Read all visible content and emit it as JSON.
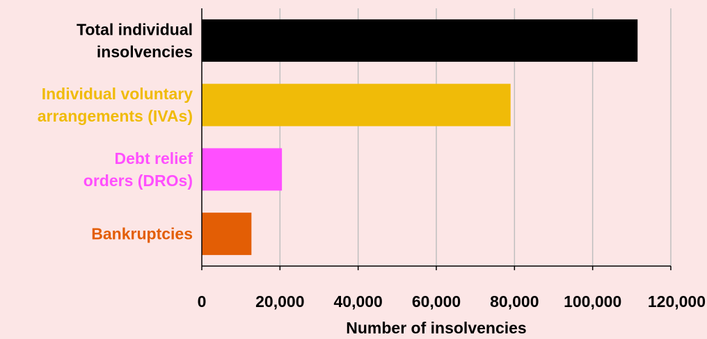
{
  "chart_data": {
    "type": "bar",
    "orientation": "horizontal",
    "categories": [
      [
        "Total individual",
        "insolvencies"
      ],
      [
        "Individual voluntary",
        "arrangements (IVAs)"
      ],
      [
        "Debt relief",
        "orders (DROs)"
      ],
      [
        "Bankruptcies"
      ]
    ],
    "values": [
      111500,
      79000,
      20500,
      12700
    ],
    "colors": [
      "#000000",
      "#f0bb08",
      "#ff4fff",
      "#e35e05"
    ],
    "label_colors": [
      "#000000",
      "#f0bb08",
      "#ff4fff",
      "#e35e05"
    ],
    "xlabel": "Number of insolvencies",
    "ylabel": "",
    "title": "",
    "xlim": [
      0,
      120000
    ],
    "xticks": [
      0,
      20000,
      40000,
      60000,
      80000,
      100000,
      120000
    ],
    "xtick_labels": [
      "0",
      "20,000",
      "40,000",
      "60,000",
      "80,000",
      "100,000",
      "120,000"
    ],
    "grid": "vertical",
    "legend": "none",
    "gridline_color": "#bfbfbf",
    "background": "#fce6e6"
  }
}
